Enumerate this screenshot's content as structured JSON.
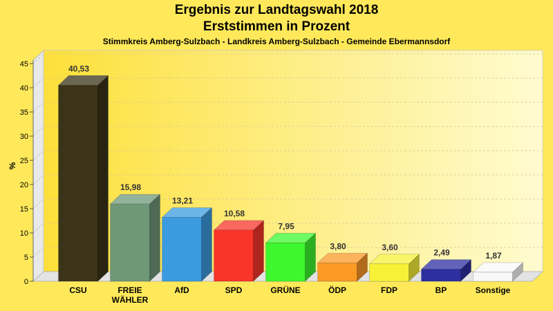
{
  "chart_data": {
    "type": "bar",
    "title": "Ergebnis zur Landtagswahl 2018",
    "subtitle_line2": "Erststimmen in Prozent",
    "subtitle": "Stimmkreis Amberg-Sulzbach - Landkreis Amberg-Sulzbach - Gemeinde Ebermannsdorf",
    "ylabel": "%",
    "xlabel": "",
    "ylim": [
      0,
      45
    ],
    "yticks": [
      0,
      5,
      10,
      15,
      20,
      25,
      30,
      35,
      40,
      45
    ],
    "grid": true,
    "categories": [
      [
        "CSU"
      ],
      [
        "FREIE",
        "WÄHLER"
      ],
      [
        "AfD"
      ],
      [
        "SPD"
      ],
      [
        "GRÜNE"
      ],
      [
        "ÖDP"
      ],
      [
        "FDP"
      ],
      [
        "BP"
      ],
      [
        "Sonstige"
      ]
    ],
    "values": [
      40.53,
      15.98,
      13.21,
      10.58,
      7.95,
      3.8,
      3.6,
      2.49,
      1.87
    ],
    "value_labels": [
      "40,53",
      "15,98",
      "13,21",
      "10,58",
      "7,95",
      "3,80",
      "3,60",
      "2,49",
      "1,87"
    ],
    "colors": [
      "#3b3418",
      "#6f9879",
      "#3c9be0",
      "#f9352a",
      "#3ef82e",
      "#fb9a25",
      "#f7f238",
      "#2d2fa0",
      "#f8f8f8"
    ]
  }
}
